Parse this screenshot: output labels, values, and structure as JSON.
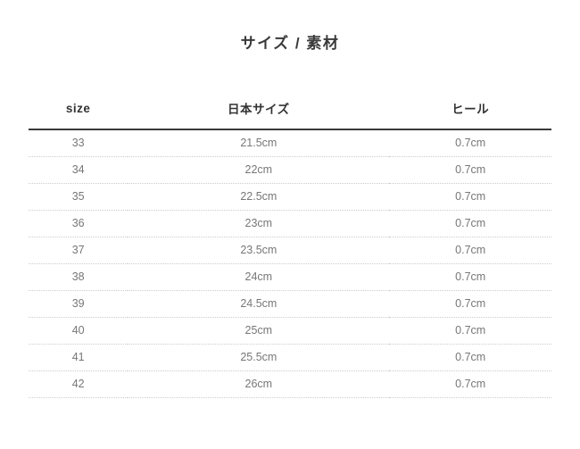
{
  "section": {
    "title": "サイズ / 素材"
  },
  "table": {
    "columns": [
      {
        "key": "size",
        "label": "size"
      },
      {
        "key": "jp_size",
        "label": "日本サイズ"
      },
      {
        "key": "heel",
        "label": "ヒール"
      }
    ],
    "rows": [
      {
        "size": "33",
        "jp_size": "21.5cm",
        "heel": "0.7cm"
      },
      {
        "size": "34",
        "jp_size": "22cm",
        "heel": "0.7cm"
      },
      {
        "size": "35",
        "jp_size": "22.5cm",
        "heel": "0.7cm"
      },
      {
        "size": "36",
        "jp_size": "23cm",
        "heel": "0.7cm"
      },
      {
        "size": "37",
        "jp_size": "23.5cm",
        "heel": "0.7cm"
      },
      {
        "size": "38",
        "jp_size": "24cm",
        "heel": "0.7cm"
      },
      {
        "size": "39",
        "jp_size": "24.5cm",
        "heel": "0.7cm"
      },
      {
        "size": "40",
        "jp_size": "25cm",
        "heel": "0.7cm"
      },
      {
        "size": "41",
        "jp_size": "25.5cm",
        "heel": "0.7cm"
      },
      {
        "size": "42",
        "jp_size": "26cm",
        "heel": "0.7cm"
      }
    ]
  },
  "colors": {
    "title_text": "#3a3a3a",
    "header_text": "#333333",
    "row_text": "#777777",
    "header_rule": "#3a3a3a",
    "row_divider": "#cccccc",
    "background": "#ffffff"
  }
}
